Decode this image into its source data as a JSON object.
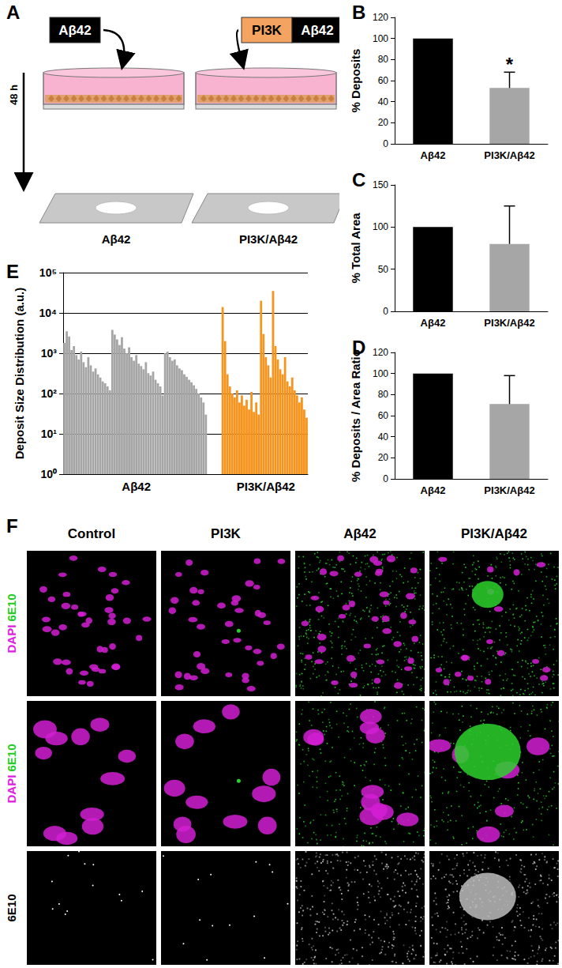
{
  "panel_labels": [
    "A",
    "B",
    "C",
    "D",
    "E",
    "F"
  ],
  "diagram": {
    "time": "48 h",
    "treatments": [
      {
        "boxes": [
          {
            "text": "Aβ42",
            "color": "#000000"
          }
        ],
        "slide_label": "Aβ42"
      },
      {
        "boxes": [
          {
            "text": "PI3K",
            "color": "#f4a460"
          },
          {
            "text": "Aβ42",
            "color": "#000000"
          }
        ],
        "slide_label": "PI3K/Aβ42"
      }
    ]
  },
  "chart_data": [
    {
      "type": "bar",
      "y_label": "% Deposits",
      "categories": [
        "Aβ42",
        "PI3K/Aβ42"
      ],
      "values": [
        100,
        53
      ],
      "errors": [
        null,
        15
      ],
      "colors": [
        "#000000",
        "#a6a6a6"
      ],
      "ylim": [
        0,
        120
      ],
      "yticks": [
        0,
        20,
        40,
        60,
        80,
        100,
        120
      ],
      "grid": false,
      "annotations": [
        {
          "category": "PI3K/Aβ42",
          "text": "*"
        }
      ]
    },
    {
      "type": "bar",
      "y_label": "% Total Area",
      "categories": [
        "Aβ42",
        "PI3K/Aβ42"
      ],
      "values": [
        100,
        80
      ],
      "errors": [
        null,
        45
      ],
      "colors": [
        "#000000",
        "#a6a6a6"
      ],
      "ylim": [
        0,
        150
      ],
      "yticks": [
        0,
        50,
        100,
        150
      ],
      "grid": false
    },
    {
      "type": "bar",
      "y_label": "% Deposits / Area Ratio",
      "categories": [
        "Aβ42",
        "PI3K/Aβ42"
      ],
      "values": [
        100,
        71
      ],
      "errors": [
        null,
        27
      ],
      "colors": [
        "#000000",
        "#a6a6a6"
      ],
      "ylim": [
        0,
        120
      ],
      "yticks": [
        0,
        20,
        40,
        60,
        80,
        100,
        120
      ],
      "grid": false
    },
    {
      "type": "bar",
      "y_label": "Deposit Size Distribution (a.u.)",
      "log": "y",
      "grid": true,
      "ylim": [
        1,
        100000
      ],
      "yticks": [
        {
          "value": 1,
          "label": "10⁰"
        },
        {
          "value": 10,
          "label": "10¹"
        },
        {
          "value": 100,
          "label": "10²"
        },
        {
          "value": 1000,
          "label": "10³"
        },
        {
          "value": 10000,
          "label": "10⁴"
        },
        {
          "value": 100000,
          "label": "10⁵"
        }
      ],
      "categories": [
        null,
        null,
        null,
        null,
        null,
        null,
        null,
        null,
        null,
        null,
        null,
        null,
        null,
        null,
        null,
        null,
        null,
        null,
        null,
        null,
        null,
        null,
        null,
        null,
        null,
        null,
        null,
        null,
        null,
        null,
        "Aβ42",
        null,
        null,
        null,
        null,
        null,
        null,
        null,
        null,
        null,
        null,
        null,
        null,
        null,
        null,
        null,
        null,
        null,
        null,
        null,
        null,
        null,
        null,
        null,
        null,
        null,
        null,
        null,
        null,
        null,
        null,
        null,
        null,
        null,
        null,
        null,
        null,
        null,
        null,
        null,
        null,
        null,
        null,
        null,
        null,
        null,
        null,
        null,
        null,
        null,
        null,
        null,
        null,
        null,
        "PI3K/Aβ42",
        null,
        null,
        null,
        null,
        null,
        null,
        null,
        null,
        null,
        null,
        null,
        null,
        null,
        null,
        null,
        null,
        null
      ],
      "series": [
        {
          "color": "#a6a6a6",
          "values": [
            1800,
            3500,
            2600,
            1200,
            1500,
            900,
            700,
            1100,
            600,
            450,
            800,
            500,
            350,
            420,
            300,
            250,
            200,
            180,
            150,
            120,
            3800,
            2900,
            2200,
            1600,
            2500,
            1300,
            1000,
            1400,
            800,
            650,
            900,
            550,
            480,
            400,
            600,
            320,
            280,
            350,
            220,
            180,
            150,
            90,
            1000,
            1100,
            800,
            650,
            700,
            500,
            420,
            380,
            300,
            260,
            220,
            190,
            160,
            130,
            100,
            80,
            60,
            30,
            null,
            null,
            null,
            null,
            null,
            null,
            null,
            null,
            null,
            null,
            null,
            null,
            null,
            null,
            null,
            null,
            null,
            null,
            null,
            null,
            null,
            null,
            null,
            null,
            null,
            null,
            null,
            null,
            null,
            null,
            null,
            null,
            null,
            null,
            null,
            null,
            null,
            null,
            null,
            null,
            null,
            null
          ]
        },
        {
          "color": "#f7941d",
          "values": [
            null,
            null,
            null,
            null,
            null,
            null,
            null,
            null,
            null,
            null,
            null,
            null,
            null,
            null,
            null,
            null,
            null,
            null,
            null,
            null,
            null,
            null,
            null,
            null,
            null,
            null,
            null,
            null,
            null,
            null,
            null,
            null,
            null,
            null,
            null,
            null,
            null,
            null,
            null,
            null,
            null,
            null,
            null,
            null,
            null,
            null,
            null,
            null,
            null,
            null,
            null,
            null,
            null,
            null,
            null,
            null,
            null,
            null,
            null,
            null,
            null,
            null,
            null,
            null,
            null,
            null,
            14000,
            2000,
            300,
            150,
            100,
            80,
            120,
            60,
            90,
            50,
            70,
            40,
            110,
            35,
            60,
            30,
            20000,
            3000,
            800,
            500,
            250,
            35000,
            1500,
            700,
            400,
            300,
            800,
            200,
            150,
            250,
            120,
            90,
            60,
            80,
            40,
            25
          ]
        }
      ]
    }
  ],
  "micrographs": {
    "columns": [
      "Control",
      "PI3K",
      "Aβ42",
      "PI3K/Aβ42"
    ],
    "rows": [
      [
        {
          "text": "DAPI",
          "color": "#e020e0"
        },
        {
          "text": "6E10",
          "color": "#22cc22"
        }
      ],
      [
        {
          "text": "DAPI",
          "color": "#e020e0"
        },
        {
          "text": "6E10",
          "color": "#22cc22"
        }
      ],
      [
        {
          "text": "6E10",
          "color": "#000000"
        }
      ]
    ]
  }
}
